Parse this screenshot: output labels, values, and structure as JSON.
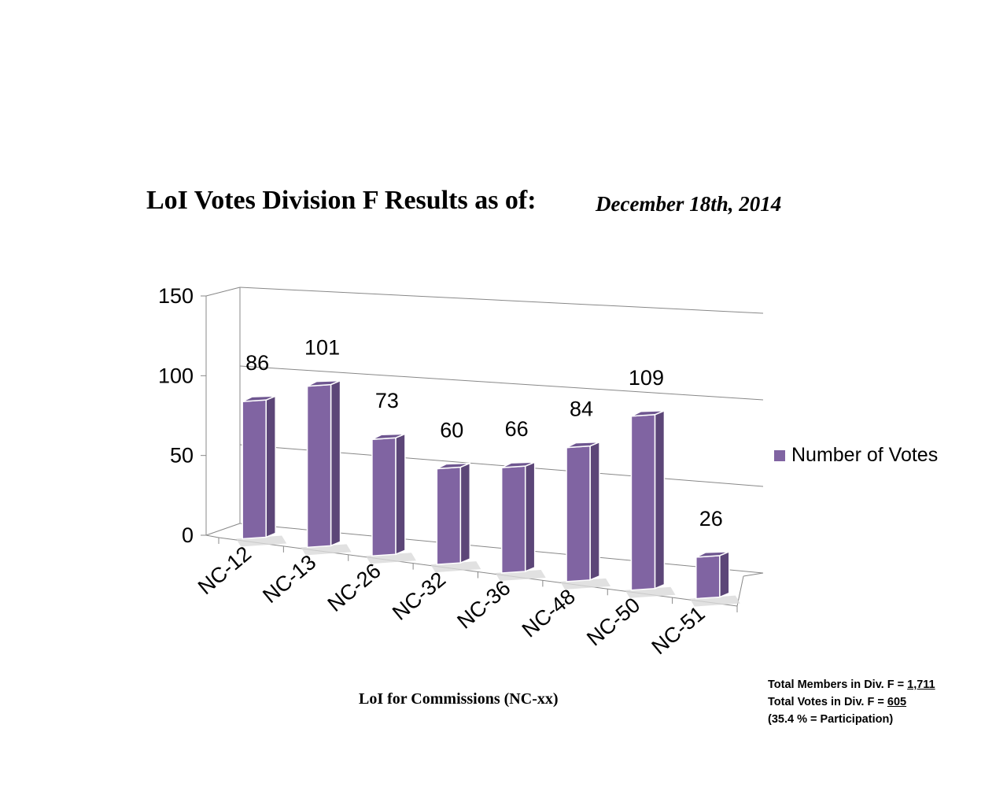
{
  "title": {
    "main": "LoI Votes Division F Results as of:",
    "date": "December 18th, 2014"
  },
  "xlabel": "LoI for Commissions (NC-xx)",
  "legend": {
    "label": "Number of Votes",
    "color": "#8064a2"
  },
  "notes": {
    "line1_prefix": "Total Members in Div. F = ",
    "line1_value": "1,711",
    "line2_prefix": "Total Votes in Div. F = ",
    "line2_value": "605",
    "line3": "(35.4 % = Participation)"
  },
  "colors": {
    "bar_front": "#8064a2",
    "bar_side": "#5c4678",
    "bar_top": "#6e5690",
    "axis": "#888888"
  },
  "chart_data": {
    "type": "bar",
    "style": "3d",
    "title": "LoI Votes Division F Results as of: December 18th, 2014",
    "xlabel": "LoI for Commissions (NC-xx)",
    "ylabel": "",
    "categories": [
      "NC-12",
      "NC-13",
      "NC-26",
      "NC-32",
      "NC-36",
      "NC-48",
      "NC-50",
      "NC-51"
    ],
    "series": [
      {
        "name": "Number of Votes",
        "values": [
          86,
          101,
          73,
          60,
          66,
          84,
          109,
          26
        ]
      }
    ],
    "ylim": [
      0,
      150
    ],
    "yticks": [
      0,
      50,
      100,
      150
    ],
    "grid": true,
    "legend_position": "right"
  }
}
